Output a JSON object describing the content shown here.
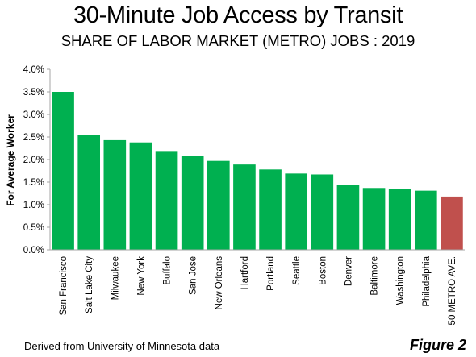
{
  "title": "30-Minute Job Access by Transit",
  "subtitle": "SHARE OF LABOR MARKET (METRO) JOBS : 2019",
  "source_note": "Derived from University of Minnesota data",
  "figure_label": "Figure 2",
  "colors": {
    "bar": "#00b050",
    "average_bar": "#c0504d",
    "axis": "#a6a6a6"
  },
  "chart_data": {
    "type": "bar",
    "title": "30-Minute Job Access by Transit",
    "subtitle": "SHARE OF LABOR MARKET (METRO) JOBS : 2019",
    "xlabel": "",
    "ylabel": "For Average Worker",
    "ylim": [
      0,
      0.04
    ],
    "yticks": [
      0,
      0.005,
      0.01,
      0.015,
      0.02,
      0.025,
      0.03,
      0.035,
      0.04
    ],
    "ytick_labels": [
      "0.0%",
      "0.5%",
      "1.0%",
      "1.5%",
      "2.0%",
      "2.5%",
      "3.0%",
      "3.5%",
      "4.0%"
    ],
    "grid": false,
    "categories": [
      "San Francisco",
      "Salt Lake City",
      "Milwaukee",
      "New York",
      "Buffalo",
      "San Jose",
      "New Orleans",
      "Hartford",
      "Portland",
      "Seattle",
      "Boston",
      "Denver",
      "Baltimore",
      "Washington",
      "Philadelphia",
      "50 METRO AVE."
    ],
    "values": [
      0.035,
      0.0254,
      0.0243,
      0.0238,
      0.0219,
      0.0208,
      0.0197,
      0.0189,
      0.0178,
      0.0169,
      0.0167,
      0.0144,
      0.0137,
      0.0134,
      0.0131,
      0.0118
    ],
    "highlight_category": "50 METRO AVE."
  }
}
